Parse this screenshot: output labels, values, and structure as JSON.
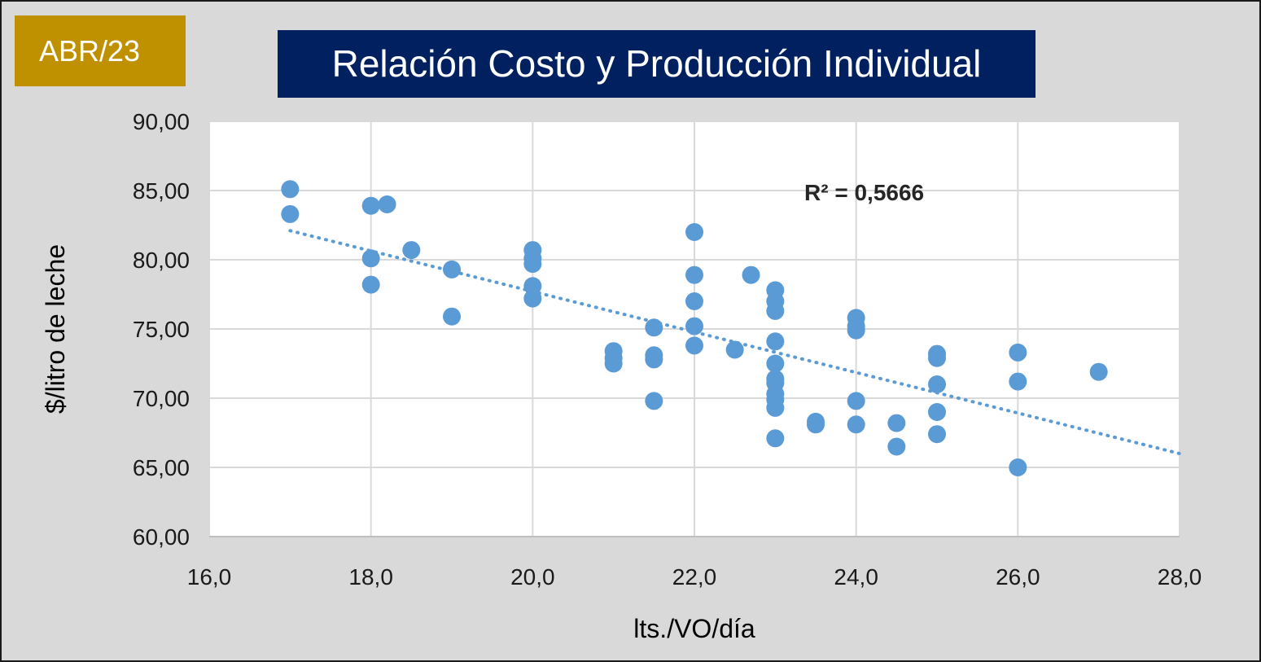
{
  "badge": "ABR/23",
  "colors": {
    "background": "#d9d9d9",
    "badge": "#bf9000",
    "title_bg": "#002060",
    "plot_bg": "#ffffff",
    "grid": "#d9d9d9",
    "points": "#5b9bd5",
    "trendline": "#5b9bd5"
  },
  "chart_data": {
    "type": "scatter",
    "title": "Relación Costo y Producción Individual",
    "xlabel": "lts./VO/día",
    "ylabel": "$/litro de leche",
    "xlim": [
      16.0,
      28.0
    ],
    "ylim": [
      60.0,
      90.0
    ],
    "x_ticks": [
      "16,0",
      "18,0",
      "20,0",
      "22,0",
      "24,0",
      "26,0",
      "28,0"
    ],
    "y_ticks": [
      "60,00",
      "65,00",
      "70,00",
      "75,00",
      "80,00",
      "85,00",
      "90,00"
    ],
    "grid": true,
    "trendline": {
      "type": "linear",
      "x": [
        17.0,
        28.0
      ],
      "y": [
        82.1,
        66.0
      ],
      "style": "dotted"
    },
    "annotation": "R² = 0,5666",
    "points": [
      {
        "x": 17.0,
        "y": 85.1
      },
      {
        "x": 17.0,
        "y": 83.3
      },
      {
        "x": 18.0,
        "y": 83.9
      },
      {
        "x": 18.2,
        "y": 84.0
      },
      {
        "x": 18.0,
        "y": 80.1
      },
      {
        "x": 18.0,
        "y": 78.2
      },
      {
        "x": 18.5,
        "y": 80.7
      },
      {
        "x": 19.0,
        "y": 79.3
      },
      {
        "x": 19.0,
        "y": 75.9
      },
      {
        "x": 20.0,
        "y": 80.7
      },
      {
        "x": 20.0,
        "y": 80.1
      },
      {
        "x": 20.0,
        "y": 79.7
      },
      {
        "x": 20.0,
        "y": 78.1
      },
      {
        "x": 20.0,
        "y": 77.2
      },
      {
        "x": 21.0,
        "y": 73.4
      },
      {
        "x": 21.0,
        "y": 72.9
      },
      {
        "x": 21.0,
        "y": 72.5
      },
      {
        "x": 21.5,
        "y": 75.1
      },
      {
        "x": 21.5,
        "y": 73.1
      },
      {
        "x": 21.5,
        "y": 72.8
      },
      {
        "x": 21.5,
        "y": 69.8
      },
      {
        "x": 22.0,
        "y": 82.0
      },
      {
        "x": 22.0,
        "y": 78.9
      },
      {
        "x": 22.0,
        "y": 77.0
      },
      {
        "x": 22.0,
        "y": 75.2
      },
      {
        "x": 22.0,
        "y": 73.8
      },
      {
        "x": 22.5,
        "y": 73.5
      },
      {
        "x": 22.7,
        "y": 78.9
      },
      {
        "x": 23.0,
        "y": 77.8
      },
      {
        "x": 23.0,
        "y": 77.0
      },
      {
        "x": 23.0,
        "y": 76.3
      },
      {
        "x": 23.0,
        "y": 74.1
      },
      {
        "x": 23.0,
        "y": 72.5
      },
      {
        "x": 23.0,
        "y": 71.4
      },
      {
        "x": 23.0,
        "y": 71.1
      },
      {
        "x": 23.0,
        "y": 70.3
      },
      {
        "x": 23.0,
        "y": 69.9
      },
      {
        "x": 23.0,
        "y": 69.3
      },
      {
        "x": 23.0,
        "y": 67.1
      },
      {
        "x": 23.5,
        "y": 68.3
      },
      {
        "x": 23.5,
        "y": 68.1
      },
      {
        "x": 24.0,
        "y": 75.8
      },
      {
        "x": 24.0,
        "y": 75.2
      },
      {
        "x": 24.0,
        "y": 74.9
      },
      {
        "x": 24.0,
        "y": 69.8
      },
      {
        "x": 24.0,
        "y": 68.1
      },
      {
        "x": 24.5,
        "y": 68.2
      },
      {
        "x": 24.5,
        "y": 66.5
      },
      {
        "x": 25.0,
        "y": 73.2
      },
      {
        "x": 25.0,
        "y": 72.9
      },
      {
        "x": 25.0,
        "y": 71.0
      },
      {
        "x": 25.0,
        "y": 69.0
      },
      {
        "x": 25.0,
        "y": 67.4
      },
      {
        "x": 26.0,
        "y": 73.3
      },
      {
        "x": 26.0,
        "y": 71.2
      },
      {
        "x": 26.0,
        "y": 65.0
      },
      {
        "x": 27.0,
        "y": 71.9
      }
    ]
  }
}
